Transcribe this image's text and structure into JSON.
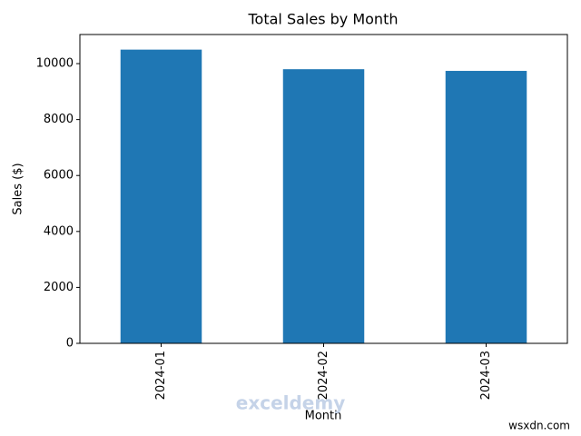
{
  "chart_data": {
    "type": "bar",
    "title": "Total Sales by Month",
    "x_label": "Month",
    "y_label": "Sales ($)",
    "categories": [
      "2024-01",
      "2024-02",
      "2024-03"
    ],
    "values": [
      10500,
      9800,
      9740
    ],
    "color": "#1f77b4",
    "ylim": [
      0,
      11040
    ],
    "yticks": [
      0,
      2000,
      4000,
      6000,
      8000,
      10000
    ],
    "grid": false
  },
  "watermarks": [
    "exceldemy",
    "wsxdn.com"
  ]
}
